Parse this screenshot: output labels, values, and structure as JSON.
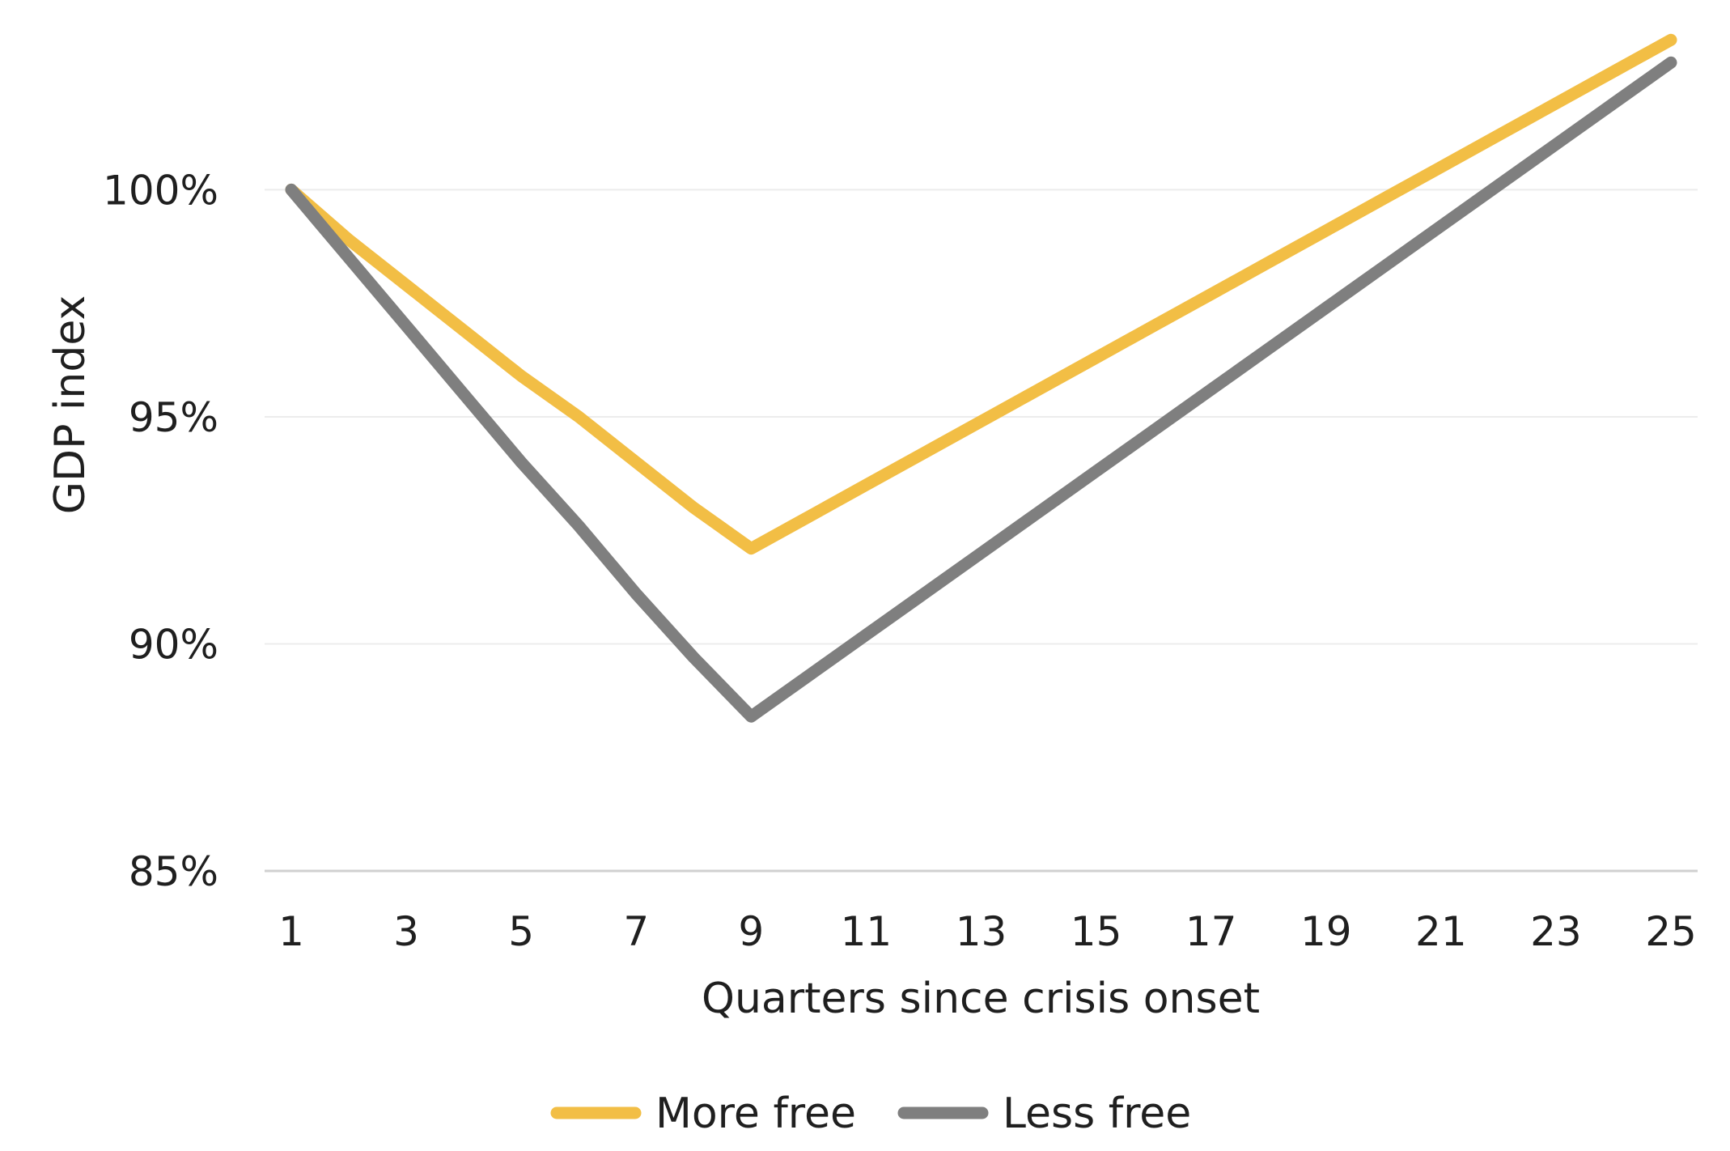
{
  "chart_data": {
    "type": "line",
    "xlabel": "Quarters since crisis onset",
    "ylabel": "GDP index",
    "x": [
      1,
      2,
      3,
      4,
      5,
      6,
      7,
      8,
      9,
      10,
      11,
      12,
      13,
      14,
      15,
      16,
      17,
      18,
      19,
      20,
      21,
      22,
      23,
      24,
      25
    ],
    "x_ticks": [
      "1",
      "3",
      "5",
      "7",
      "9",
      "11",
      "13",
      "15",
      "17",
      "19",
      "21",
      "23",
      "25"
    ],
    "y_ticks": [
      "85%",
      "90%",
      "95%",
      "100%"
    ],
    "ylim": [
      85,
      104
    ],
    "grid": "horizontal",
    "legend_position": "bottom",
    "series": [
      {
        "name": "More free",
        "color": "#F2BE45",
        "values": [
          100,
          98.9,
          97.9,
          96.9,
          95.9,
          95.0,
          94.0,
          93.0,
          92.1,
          92.8,
          93.5,
          94.2,
          94.9,
          95.6,
          96.3,
          97.0,
          97.7,
          98.4,
          99.1,
          99.8,
          100.5,
          101.2,
          101.9,
          102.6,
          103.3
        ]
      },
      {
        "name": "Less free",
        "color": "#7F7F7F",
        "values": [
          100,
          98.5,
          97.0,
          95.5,
          94.0,
          92.6,
          91.1,
          89.7,
          88.4,
          89.3,
          90.2,
          91.1,
          92.0,
          92.9,
          93.8,
          94.7,
          95.6,
          96.5,
          97.4,
          98.3,
          99.2,
          100.1,
          101.0,
          101.9,
          102.8
        ]
      }
    ]
  }
}
